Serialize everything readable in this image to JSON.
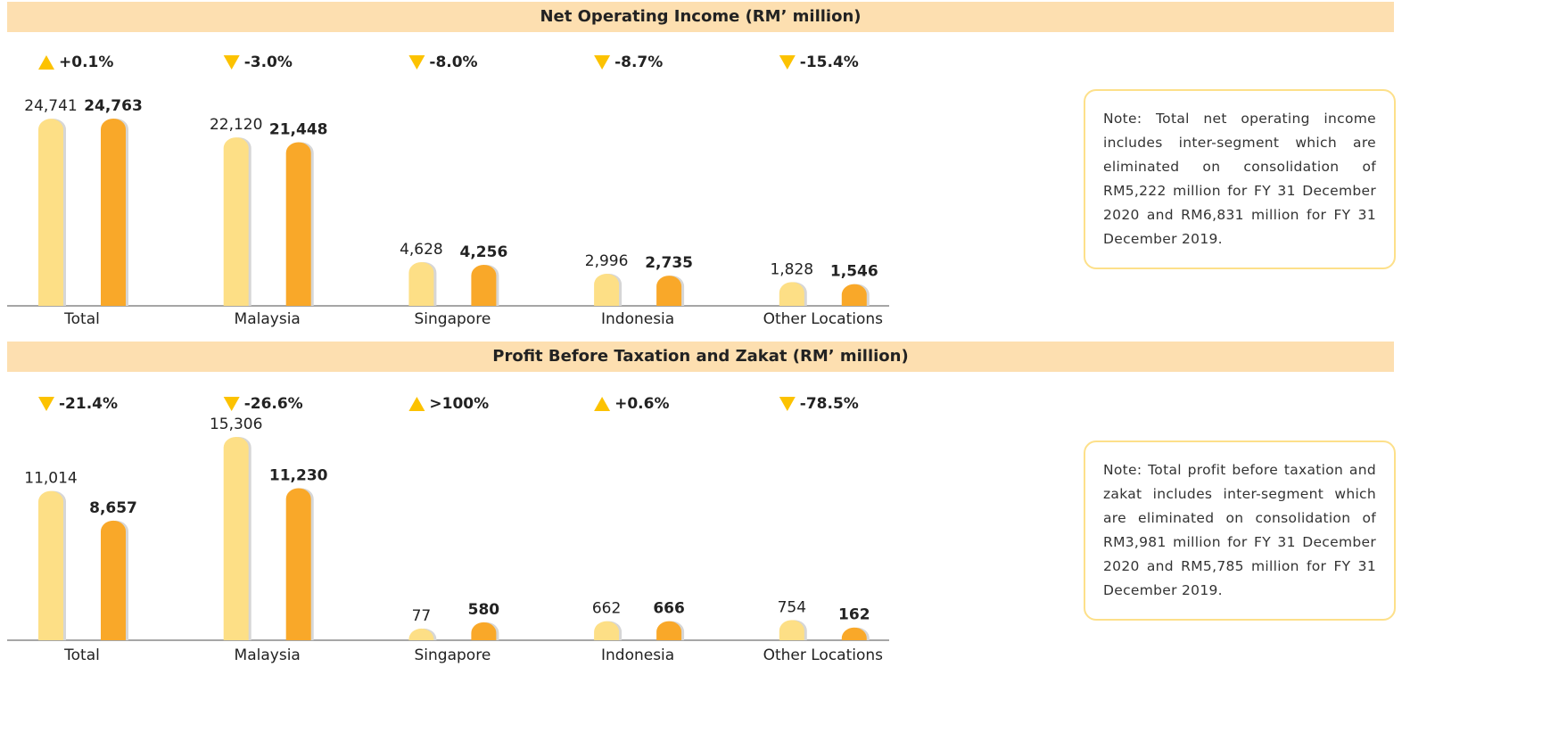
{
  "chart_data": [
    {
      "type": "bar",
      "title": "Net Operating Income (RM’ million)",
      "categories": [
        "Total",
        "Malaysia",
        "Singapore",
        "Indonesia",
        "Other Locations"
      ],
      "series": [
        {
          "color": "#fddf86",
          "values": [
            24741,
            22120,
            4628,
            2996,
            1828
          ],
          "value_labels": [
            "24,741",
            "22,120",
            "4,628",
            "2,996",
            "1,828"
          ]
        },
        {
          "color": "#f9a829",
          "values": [
            24763,
            21448,
            4256,
            2735,
            1546
          ],
          "value_labels": [
            "24,763",
            "21,448",
            "4,256",
            "2,735",
            "1,546"
          ]
        }
      ],
      "changes": [
        {
          "label": "+0.1%",
          "direction": "up"
        },
        {
          "label": "-3.0%",
          "direction": "down"
        },
        {
          "label": "-8.0%",
          "direction": "down"
        },
        {
          "label": "-8.7%",
          "direction": "down"
        },
        {
          "label": "-15.4%",
          "direction": "down"
        }
      ],
      "note": "Note: Total net operating income includes inter-segment which are eliminated on consolidation of RM5,222 million for FY 31 December 2020 and RM6,831 million for FY 31 December 2019."
    },
    {
      "type": "bar",
      "title": "Profit Before Taxation and Zakat (RM’ million)",
      "categories": [
        "Total",
        "Malaysia",
        "Singapore",
        "Indonesia",
        "Other Locations"
      ],
      "series": [
        {
          "color": "#fddf86",
          "values": [
            11014,
            15306,
            77,
            662,
            754
          ],
          "value_labels": [
            "11,014",
            "15,306",
            "77",
            "662",
            "754"
          ]
        },
        {
          "color": "#f9a829",
          "values": [
            8657,
            11230,
            580,
            666,
            162
          ],
          "value_labels": [
            "8,657",
            "11,230",
            "580",
            "666",
            "162"
          ]
        }
      ],
      "changes": [
        {
          "label": "-21.4%",
          "direction": "down"
        },
        {
          "label": "-26.6%",
          "direction": "down"
        },
        {
          "label": ">100%",
          "direction": "up"
        },
        {
          "label": "+0.6%",
          "direction": "up"
        },
        {
          "label": "-78.5%",
          "direction": "down"
        }
      ],
      "note": "Note: Total profit before taxation and zakat includes inter-segment which are eliminated on consolidation of RM3,981 million for FY 31 December 2020 and RM5,785 million for FY 31 December 2019."
    }
  ]
}
